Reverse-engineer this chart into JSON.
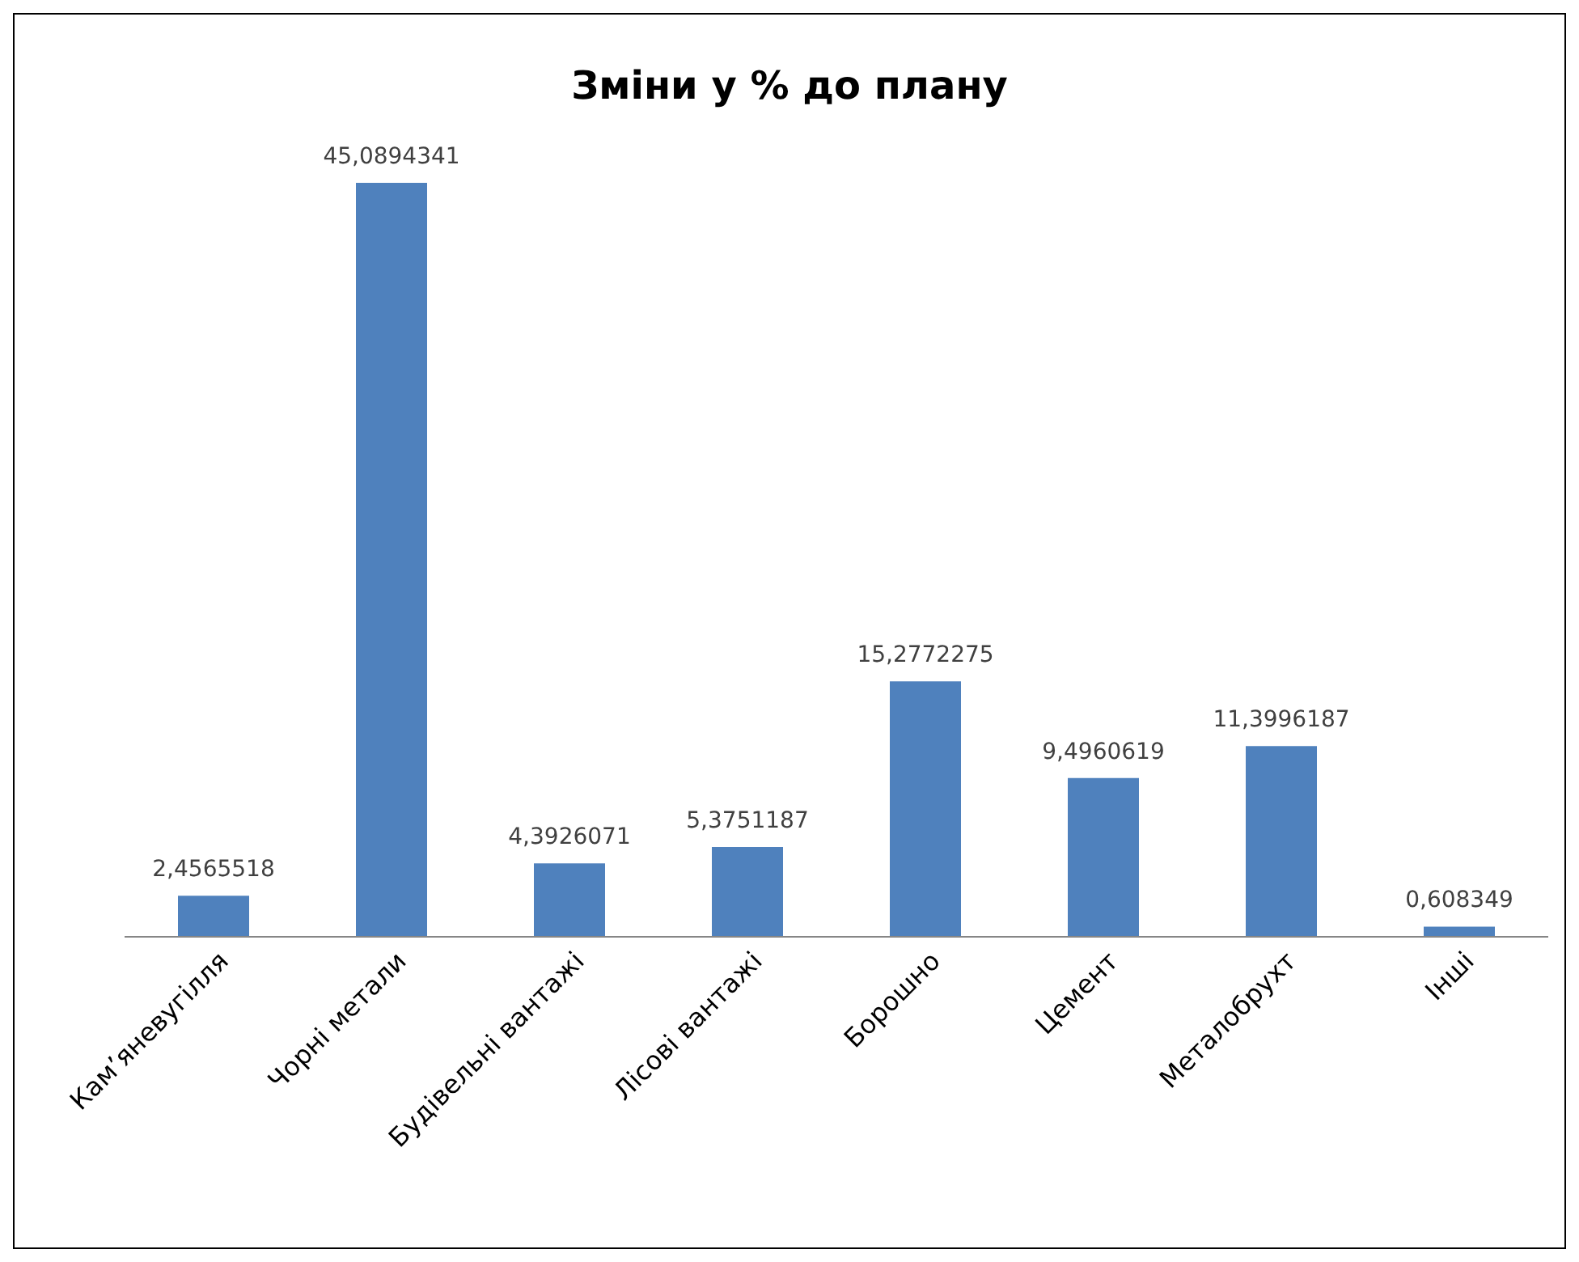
{
  "chart_data": {
    "type": "bar",
    "title": "Зміни у % до плану",
    "categories": [
      "Кам’яневугілля",
      "Чорні метали",
      "Будівельні вантажі",
      "Лісові вантажі",
      "Борошно",
      "Цемент",
      "Металобрухт",
      "Інші"
    ],
    "values": [
      2.4565518,
      45.0894341,
      4.3926071,
      5.3751187,
      15.2772275,
      9.4960619,
      11.3996187,
      0.608349
    ],
    "value_labels": [
      "2,4565518",
      "45,0894341",
      "4,3926071",
      "5,3751187",
      "15,2772275",
      "9,4960619",
      "11,3996187",
      "0,608349"
    ],
    "color": "#4f81bd"
  }
}
